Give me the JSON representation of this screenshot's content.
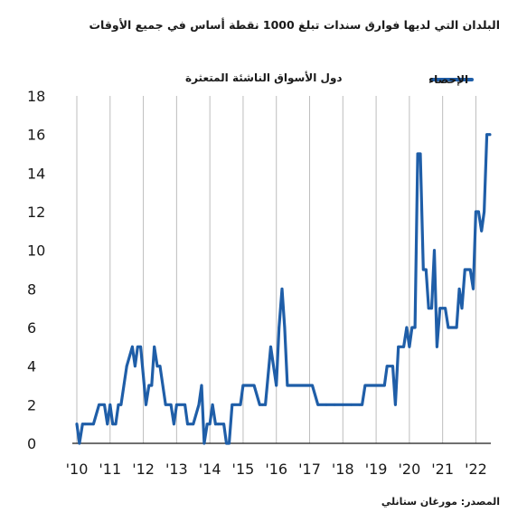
{
  "header": {
    "title": "البلدان التي لديها فوارق سندات تبلغ 1000 نقطة أساس في جميع الأوقات"
  },
  "footer": {
    "source": "المصدر: مورغان ستانلي"
  },
  "chart_data": {
    "type": "line",
    "title": "البلدان التي لديها فوارق سندات تبلغ 1000 نقطة أساس في جميع الأوقات",
    "ylabel": "دول الأسواق الناشئة المتعثرة",
    "xlabel": "",
    "ylim": [
      0,
      18
    ],
    "yticks": [
      0,
      2,
      4,
      6,
      8,
      10,
      12,
      14,
      16,
      18
    ],
    "xlim": [
      2010.0,
      2022.45
    ],
    "xticks": [
      {
        "value": 2010,
        "label": "'10"
      },
      {
        "value": 2011,
        "label": "'11"
      },
      {
        "value": 2012,
        "label": "'12"
      },
      {
        "value": 2013,
        "label": "'13"
      },
      {
        "value": 2014,
        "label": "'14"
      },
      {
        "value": 2015,
        "label": "'15"
      },
      {
        "value": 2016,
        "label": "'16"
      },
      {
        "value": 2017,
        "label": "'17"
      },
      {
        "value": 2018,
        "label": "'18"
      },
      {
        "value": 2019,
        "label": "'19"
      },
      {
        "value": 2020,
        "label": "'20"
      },
      {
        "value": 2021,
        "label": "'21"
      },
      {
        "value": 2022,
        "label": "'22"
      }
    ],
    "grid": "vertical",
    "legend_position": "top-right",
    "series": [
      {
        "name": "الإحصاء",
        "color": "#1f5ea8",
        "x": [
          2010.0,
          2010.08,
          2010.17,
          2010.25,
          2010.5,
          2010.67,
          2010.83,
          2010.92,
          2011.0,
          2011.08,
          2011.17,
          2011.25,
          2011.33,
          2011.5,
          2011.67,
          2011.75,
          2011.83,
          2011.92,
          2012.08,
          2012.17,
          2012.25,
          2012.33,
          2012.42,
          2012.5,
          2012.67,
          2012.83,
          2012.92,
          2013.0,
          2013.08,
          2013.25,
          2013.33,
          2013.5,
          2013.67,
          2013.75,
          2013.83,
          2013.92,
          2014.0,
          2014.08,
          2014.17,
          2014.25,
          2014.42,
          2014.5,
          2014.58,
          2014.67,
          2014.75,
          2014.92,
          2015.0,
          2015.17,
          2015.33,
          2015.5,
          2015.58,
          2015.67,
          2015.83,
          2016.0,
          2016.08,
          2016.17,
          2016.25,
          2016.33,
          2016.5,
          2016.67,
          2016.83,
          2017.0,
          2017.08,
          2017.25,
          2017.5,
          2017.75,
          2018.0,
          2018.25,
          2018.5,
          2018.58,
          2018.67,
          2018.83,
          2019.0,
          2019.08,
          2019.25,
          2019.33,
          2019.5,
          2019.58,
          2019.67,
          2019.83,
          2019.92,
          2020.0,
          2020.08,
          2020.17,
          2020.25,
          2020.33,
          2020.42,
          2020.5,
          2020.58,
          2020.67,
          2020.75,
          2020.83,
          2020.92,
          2021.0,
          2021.08,
          2021.17,
          2021.25,
          2021.42,
          2021.5,
          2021.58,
          2021.67,
          2021.83,
          2021.92,
          2022.0,
          2022.08,
          2022.17,
          2022.25,
          2022.33,
          2022.42
        ],
        "values": [
          1,
          0,
          1,
          1,
          1,
          2,
          2,
          1,
          2,
          1,
          1,
          2,
          2,
          4,
          5,
          4,
          5,
          5,
          2,
          3,
          3,
          5,
          4,
          4,
          2,
          2,
          1,
          2,
          2,
          2,
          1,
          1,
          2,
          3,
          0,
          1,
          1,
          2,
          1,
          1,
          1,
          0,
          0,
          2,
          2,
          2,
          3,
          3,
          3,
          2,
          2,
          2,
          5,
          3,
          6,
          8,
          6,
          3,
          3,
          3,
          3,
          3,
          3,
          2,
          2,
          2,
          2,
          2,
          2,
          2,
          3,
          3,
          3,
          3,
          3,
          4,
          4,
          2,
          5,
          5,
          6,
          5,
          6,
          6,
          15,
          15,
          9,
          9,
          7,
          7,
          10,
          5,
          7,
          7,
          7,
          6,
          6,
          6,
          8,
          7,
          9,
          9,
          8,
          12,
          12,
          11,
          12,
          16,
          16
        ]
      }
    ]
  }
}
